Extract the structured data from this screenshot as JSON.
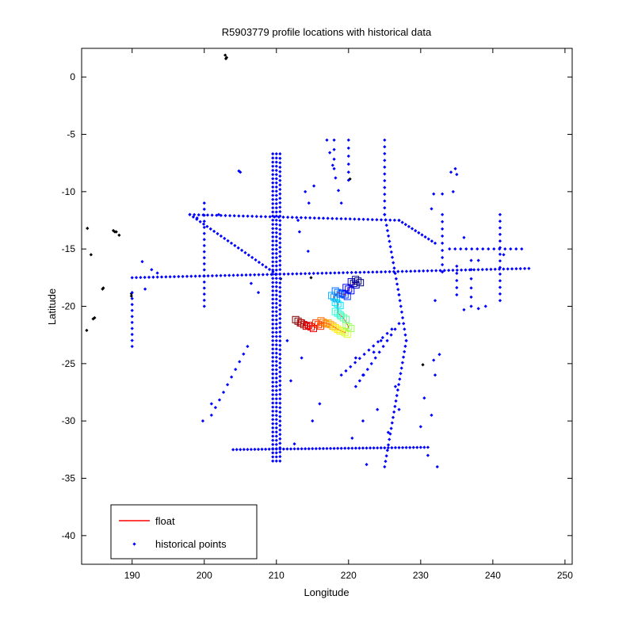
{
  "chart_data": {
    "type": "scatter",
    "title": "R5903779 profile locations with historical data",
    "xlabel": "Longitude",
    "ylabel": "Latitude",
    "xlim": [
      183,
      251
    ],
    "ylim": [
      -42.5,
      2.5
    ],
    "xticks": [
      190,
      200,
      210,
      220,
      230,
      240,
      250
    ],
    "yticks": [
      0,
      -5,
      -10,
      -15,
      -20,
      -25,
      -30,
      -35,
      -40
    ],
    "grid": false,
    "legend": {
      "placement": "bottom-left",
      "entries": [
        "float",
        "historical points"
      ]
    },
    "colors": {
      "historical": "#0000ff",
      "coastline": "#000000",
      "float_line": "#ff0000"
    },
    "coastline_points": [
      [
        203.0,
        1.6
      ],
      [
        202.9,
        1.9
      ],
      [
        203.1,
        1.7
      ],
      [
        183.8,
        -13.2
      ],
      [
        184.3,
        -15.5
      ],
      [
        183.7,
        -22.1
      ],
      [
        187.4,
        -13.4
      ],
      [
        187.8,
        -13.5
      ],
      [
        188.2,
        -13.8
      ],
      [
        187.6,
        -13.5
      ],
      [
        186.0,
        -18.4
      ],
      [
        185.9,
        -18.5
      ],
      [
        189.9,
        -18.9
      ],
      [
        189.9,
        -19.1
      ],
      [
        184.8,
        -21.0
      ],
      [
        184.6,
        -21.1
      ],
      [
        220.2,
        -8.9
      ],
      [
        214.8,
        -17.5
      ],
      [
        210.6,
        -17.6
      ],
      [
        230.3,
        -25.1
      ]
    ],
    "historical_segments": [
      {
        "from": [
          190.0,
          -17.5
        ],
        "to": [
          245.0,
          -16.7
        ],
        "n": 95
      },
      {
        "from": [
          198.0,
          -12.0
        ],
        "to": [
          227.0,
          -12.5
        ],
        "n": 48
      },
      {
        "from": [
          198.0,
          -12.0
        ],
        "to": [
          210.0,
          -17.2
        ],
        "n": 26
      },
      {
        "from": [
          210.0,
          -6.7
        ],
        "to": [
          210.0,
          -33.5
        ],
        "n": 75
      },
      {
        "from": [
          209.5,
          -6.7
        ],
        "to": [
          209.5,
          -33.5
        ],
        "n": 75
      },
      {
        "from": [
          210.5,
          -6.7
        ],
        "to": [
          210.5,
          -33.5
        ],
        "n": 70
      },
      {
        "from": [
          204.0,
          -32.5
        ],
        "to": [
          231.0,
          -32.3
        ],
        "n": 55
      },
      {
        "from": [
          225.0,
          -5.5
        ],
        "to": [
          225.0,
          -12.0
        ],
        "n": 12
      },
      {
        "from": [
          225.0,
          -12.0
        ],
        "to": [
          227.0,
          -19.0
        ],
        "n": 16
      },
      {
        "from": [
          227.0,
          -19.0
        ],
        "to": [
          228.0,
          -23.0
        ],
        "n": 9
      },
      {
        "from": [
          228.0,
          -23.0
        ],
        "to": [
          225.0,
          -34.0
        ],
        "n": 24
      },
      {
        "from": [
          190.0,
          -18.8
        ],
        "to": [
          190.0,
          -23.5
        ],
        "n": 10
      },
      {
        "from": [
          200.0,
          -11.0
        ],
        "to": [
          200.0,
          -20.0
        ],
        "n": 18
      },
      {
        "from": [
          227.0,
          -12.5
        ],
        "to": [
          232.0,
          -14.5
        ],
        "n": 12
      },
      {
        "from": [
          234.0,
          -15.0
        ],
        "to": [
          244.0,
          -15.0
        ],
        "n": 14
      },
      {
        "from": [
          241.0,
          -12.0
        ],
        "to": [
          241.0,
          -19.5
        ],
        "n": 14
      },
      {
        "from": [
          235.0,
          -16.5
        ],
        "to": [
          235.0,
          -19.0
        ],
        "n": 5
      },
      {
        "from": [
          226.0,
          -22.0
        ],
        "to": [
          219.0,
          -26.0
        ],
        "n": 12
      },
      {
        "from": [
          227.0,
          -21.5
        ],
        "to": [
          221.0,
          -27.0
        ],
        "n": 12
      },
      {
        "from": [
          206.0,
          -23.5
        ],
        "to": [
          201.0,
          -29.5
        ],
        "n": 10
      },
      {
        "from": [
          233.0,
          -12.0
        ],
        "to": [
          233.0,
          -17.0
        ],
        "n": 9
      },
      {
        "from": [
          237.0,
          -16.0
        ],
        "to": [
          237.0,
          -20.0
        ],
        "n": 6
      },
      {
        "from": [
          218.0,
          -5.5
        ],
        "to": [
          218.0,
          -8.0
        ],
        "n": 4
      },
      {
        "from": [
          220.0,
          -5.5
        ],
        "to": [
          220.0,
          -9.0
        ],
        "n": 6
      },
      {
        "from": [
          217.0,
          -5.5
        ],
        "to": [
          219.0,
          -11.0
        ],
        "n": 6
      }
    ],
    "historical_points": [
      [
        205.0,
        -8.3
      ],
      [
        204.8,
        -8.2
      ],
      [
        202.0,
        -12.0
      ],
      [
        199.0,
        -12.3
      ],
      [
        191.4,
        -16.1
      ],
      [
        192.7,
        -16.8
      ],
      [
        193.5,
        -17.1
      ],
      [
        191.8,
        -18.5
      ],
      [
        201.0,
        -28.5
      ],
      [
        199.8,
        -30.0
      ],
      [
        214.0,
        -10.0
      ],
      [
        213.0,
        -12.5
      ],
      [
        214.4,
        -15.2
      ],
      [
        213.2,
        -13.5
      ],
      [
        215.2,
        -9.5
      ],
      [
        214.5,
        -11.0
      ],
      [
        231.8,
        -10.2
      ],
      [
        231.5,
        -11.5
      ],
      [
        233.0,
        -10.2
      ],
      [
        234.2,
        -8.3
      ],
      [
        234.8,
        -8.0
      ],
      [
        235.0,
        -8.5
      ],
      [
        234.5,
        -10.0
      ],
      [
        236.0,
        -14.0
      ],
      [
        238.0,
        -16.0
      ],
      [
        239.0,
        -20.0
      ],
      [
        238.0,
        -20.2
      ],
      [
        236.0,
        -20.3
      ],
      [
        232.0,
        -19.5
      ],
      [
        232.6,
        -24.2
      ],
      [
        231.8,
        -24.7
      ],
      [
        232.0,
        -26.0
      ],
      [
        230.5,
        -28.0
      ],
      [
        231.5,
        -29.5
      ],
      [
        230.0,
        -30.5
      ],
      [
        232.3,
        -34.0
      ],
      [
        231.0,
        -33.0
      ],
      [
        222.5,
        -33.8
      ],
      [
        220.5,
        -31.5
      ],
      [
        224.0,
        -29.0
      ],
      [
        225.5,
        -31.0
      ],
      [
        227.0,
        -29.0
      ],
      [
        226.5,
        -27.0
      ],
      [
        221.0,
        -24.5
      ],
      [
        222.0,
        -26.0
      ],
      [
        223.5,
        -24.0
      ],
      [
        224.5,
        -23.0
      ],
      [
        212.5,
        -32.0
      ],
      [
        215.0,
        -30.0
      ],
      [
        216.0,
        -28.5
      ],
      [
        213.5,
        -24.5
      ],
      [
        211.5,
        -23.0
      ],
      [
        212.0,
        -26.5
      ],
      [
        207.5,
        -18.8
      ],
      [
        206.5,
        -18.0
      ],
      [
        222.0,
        -30.0
      ],
      [
        241.5,
        -15.5
      ]
    ],
    "float_track": [
      [
        213.0,
        -21.3
      ],
      [
        213.8,
        -21.6
      ],
      [
        214.8,
        -21.8
      ],
      [
        215.8,
        -21.6
      ],
      [
        216.5,
        -21.4
      ],
      [
        217.5,
        -21.6
      ],
      [
        218.5,
        -22.0
      ],
      [
        219.5,
        -22.3
      ],
      [
        220.0,
        -21.8
      ],
      [
        219.3,
        -21.0
      ],
      [
        218.5,
        -20.6
      ],
      [
        218.5,
        -19.8
      ],
      [
        218.0,
        -19.2
      ],
      [
        218.5,
        -18.8
      ],
      [
        219.5,
        -19.0
      ],
      [
        220.0,
        -18.5
      ],
      [
        220.7,
        -18.0
      ],
      [
        221.3,
        -17.8
      ]
    ]
  }
}
